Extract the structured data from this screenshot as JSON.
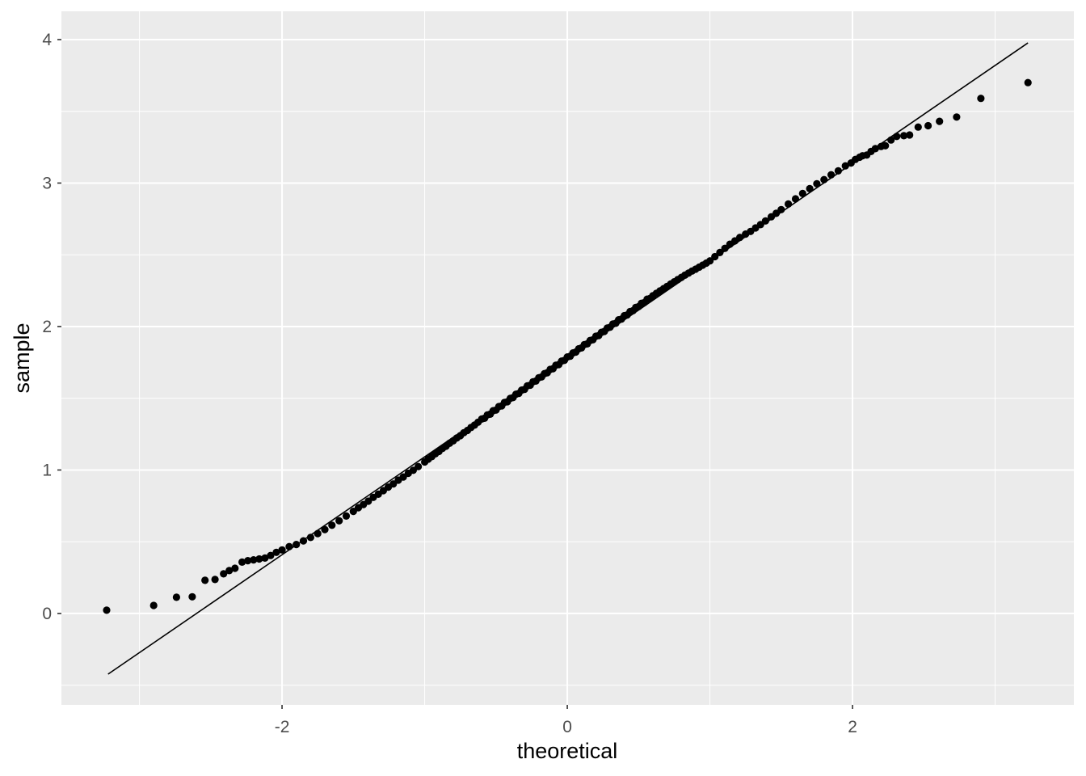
{
  "figure": {
    "background": "#FFFFFF"
  },
  "panel": {
    "background": "#EBEBEB",
    "grid_color": "#FFFFFF",
    "tick_mark_color": "#333333",
    "tick_label_color": "#4D4D4D",
    "point_color": "#000000",
    "line_color": "#000000"
  },
  "chart_data": {
    "type": "scatter",
    "subtype": "qq-plot",
    "title": "",
    "xlabel": "theoretical",
    "ylabel": "sample",
    "xlim": [
      -3.547,
      3.552
    ],
    "ylim": [
      -0.637,
      4.197
    ],
    "x_ticks": [
      {
        "value": -2,
        "label": "-2"
      },
      {
        "value": 0,
        "label": "0"
      },
      {
        "value": 2,
        "label": "2"
      }
    ],
    "y_ticks": [
      {
        "value": 0,
        "label": "0"
      },
      {
        "value": 1,
        "label": "1"
      },
      {
        "value": 2,
        "label": "2"
      },
      {
        "value": 3,
        "label": "3"
      },
      {
        "value": 4,
        "label": "4"
      }
    ],
    "x_minor_gridlines": [
      -3,
      -1,
      1,
      3
    ],
    "y_minor_gridlines": [
      -0.5,
      0.5,
      1.5,
      2.5,
      3.5
    ],
    "grid": true,
    "legend_position": "none",
    "reference_line": {
      "x1": -3.22,
      "y1": -0.423,
      "x2": 3.23,
      "y2": 3.977
    },
    "points": [
      [
        -3.23,
        0.023
      ],
      [
        -2.9,
        0.056
      ],
      [
        -2.74,
        0.113
      ],
      [
        -2.63,
        0.116
      ],
      [
        -2.54,
        0.231
      ],
      [
        -2.47,
        0.237
      ],
      [
        -2.41,
        0.276
      ],
      [
        -2.37,
        0.299
      ],
      [
        -2.33,
        0.315
      ],
      [
        -2.28,
        0.358
      ],
      [
        -2.24,
        0.368
      ],
      [
        -2.2,
        0.374
      ],
      [
        -2.16,
        0.38
      ],
      [
        -2.12,
        0.386
      ],
      [
        -2.08,
        0.404
      ],
      [
        -2.04,
        0.426
      ],
      [
        -2.0,
        0.443
      ],
      [
        -1.95,
        0.466
      ],
      [
        -1.9,
        0.481
      ],
      [
        -1.85,
        0.506
      ],
      [
        -1.8,
        0.53
      ],
      [
        -1.75,
        0.557
      ],
      [
        -1.7,
        0.585
      ],
      [
        -1.65,
        0.615
      ],
      [
        -1.6,
        0.646
      ],
      [
        -1.55,
        0.679
      ],
      [
        -1.5,
        0.712
      ],
      [
        -1.465,
        0.737
      ],
      [
        -1.43,
        0.759
      ],
      [
        -1.395,
        0.783
      ],
      [
        -1.36,
        0.809
      ],
      [
        -1.325,
        0.831
      ],
      [
        -1.29,
        0.856
      ],
      [
        -1.255,
        0.881
      ],
      [
        -1.22,
        0.903
      ],
      [
        -1.185,
        0.929
      ],
      [
        -1.15,
        0.951
      ],
      [
        -1.115,
        0.977
      ],
      [
        -1.08,
        0.998
      ],
      [
        -1.045,
        1.024
      ],
      [
        -1.0,
        1.056
      ],
      [
        -0.975,
        1.076
      ],
      [
        -0.95,
        1.093
      ],
      [
        -0.925,
        1.113
      ],
      [
        -0.9,
        1.129
      ],
      [
        -0.875,
        1.15
      ],
      [
        -0.85,
        1.166
      ],
      [
        -0.825,
        1.186
      ],
      [
        -0.8,
        1.203
      ],
      [
        -0.775,
        1.223
      ],
      [
        -0.75,
        1.239
      ],
      [
        -0.725,
        1.26
      ],
      [
        -0.7,
        1.276
      ],
      [
        -0.675,
        1.296
      ],
      [
        -0.65,
        1.313
      ],
      [
        -0.625,
        1.333
      ],
      [
        -0.6,
        1.355
      ],
      [
        -0.58,
        1.361
      ],
      [
        -0.56,
        1.384
      ],
      [
        -0.54,
        1.389
      ],
      [
        -0.52,
        1.413
      ],
      [
        -0.5,
        1.418
      ],
      [
        -0.48,
        1.442
      ],
      [
        -0.46,
        1.447
      ],
      [
        -0.44,
        1.471
      ],
      [
        -0.42,
        1.476
      ],
      [
        -0.4,
        1.499
      ],
      [
        -0.38,
        1.505
      ],
      [
        -0.36,
        1.528
      ],
      [
        -0.34,
        1.534
      ],
      [
        -0.32,
        1.557
      ],
      [
        -0.3,
        1.562
      ],
      [
        -0.28,
        1.586
      ],
      [
        -0.26,
        1.591
      ],
      [
        -0.24,
        1.615
      ],
      [
        -0.22,
        1.62
      ],
      [
        -0.2,
        1.643
      ],
      [
        -0.18,
        1.649
      ],
      [
        -0.16,
        1.672
      ],
      [
        -0.14,
        1.678
      ],
      [
        -0.12,
        1.701
      ],
      [
        -0.1,
        1.706
      ],
      [
        -0.08,
        1.73
      ],
      [
        -0.06,
        1.735
      ],
      [
        -0.04,
        1.759
      ],
      [
        -0.02,
        1.764
      ],
      [
        0.0,
        1.788
      ],
      [
        0.02,
        1.793
      ],
      [
        0.04,
        1.816
      ],
      [
        0.06,
        1.822
      ],
      [
        0.08,
        1.845
      ],
      [
        0.1,
        1.851
      ],
      [
        0.12,
        1.874
      ],
      [
        0.14,
        1.879
      ],
      [
        0.16,
        1.903
      ],
      [
        0.18,
        1.908
      ],
      [
        0.2,
        1.932
      ],
      [
        0.22,
        1.937
      ],
      [
        0.24,
        1.96
      ],
      [
        0.26,
        1.966
      ],
      [
        0.28,
        1.989
      ],
      [
        0.3,
        1.995
      ],
      [
        0.32,
        2.018
      ],
      [
        0.34,
        2.023
      ],
      [
        0.36,
        2.047
      ],
      [
        0.38,
        2.052
      ],
      [
        0.4,
        2.076
      ],
      [
        0.42,
        2.081
      ],
      [
        0.44,
        2.104
      ],
      [
        0.46,
        2.11
      ],
      [
        0.48,
        2.133
      ],
      [
        0.5,
        2.139
      ],
      [
        0.52,
        2.162
      ],
      [
        0.54,
        2.167
      ],
      [
        0.56,
        2.191
      ],
      [
        0.58,
        2.196
      ],
      [
        0.6,
        2.215
      ],
      [
        0.625,
        2.232
      ],
      [
        0.65,
        2.248
      ],
      [
        0.675,
        2.264
      ],
      [
        0.7,
        2.28
      ],
      [
        0.725,
        2.296
      ],
      [
        0.75,
        2.312
      ],
      [
        0.775,
        2.327
      ],
      [
        0.8,
        2.343
      ],
      [
        0.825,
        2.358
      ],
      [
        0.85,
        2.372
      ],
      [
        0.875,
        2.387
      ],
      [
        0.9,
        2.4
      ],
      [
        0.925,
        2.414
      ],
      [
        0.95,
        2.428
      ],
      [
        0.975,
        2.442
      ],
      [
        1.0,
        2.458
      ],
      [
        1.035,
        2.487
      ],
      [
        1.07,
        2.516
      ],
      [
        1.105,
        2.545
      ],
      [
        1.14,
        2.574
      ],
      [
        1.175,
        2.597
      ],
      [
        1.21,
        2.621
      ],
      [
        1.25,
        2.644
      ],
      [
        1.285,
        2.663
      ],
      [
        1.32,
        2.687
      ],
      [
        1.355,
        2.71
      ],
      [
        1.39,
        2.736
      ],
      [
        1.43,
        2.765
      ],
      [
        1.465,
        2.789
      ],
      [
        1.5,
        2.815
      ],
      [
        1.55,
        2.854
      ],
      [
        1.6,
        2.89
      ],
      [
        1.65,
        2.927
      ],
      [
        1.7,
        2.961
      ],
      [
        1.75,
        2.995
      ],
      [
        1.8,
        3.024
      ],
      [
        1.85,
        3.058
      ],
      [
        1.9,
        3.085
      ],
      [
        1.95,
        3.12
      ],
      [
        1.99,
        3.14
      ],
      [
        2.02,
        3.165
      ],
      [
        2.05,
        3.18
      ],
      [
        2.07,
        3.19
      ],
      [
        2.1,
        3.195
      ],
      [
        2.13,
        3.22
      ],
      [
        2.16,
        3.24
      ],
      [
        2.2,
        3.255
      ],
      [
        2.23,
        3.26
      ],
      [
        2.27,
        3.3
      ],
      [
        2.31,
        3.325
      ],
      [
        2.36,
        3.33
      ],
      [
        2.4,
        3.335
      ],
      [
        2.46,
        3.39
      ],
      [
        2.53,
        3.4
      ],
      [
        2.61,
        3.43
      ],
      [
        2.73,
        3.46
      ],
      [
        2.9,
        3.59
      ],
      [
        3.23,
        3.7
      ]
    ]
  }
}
